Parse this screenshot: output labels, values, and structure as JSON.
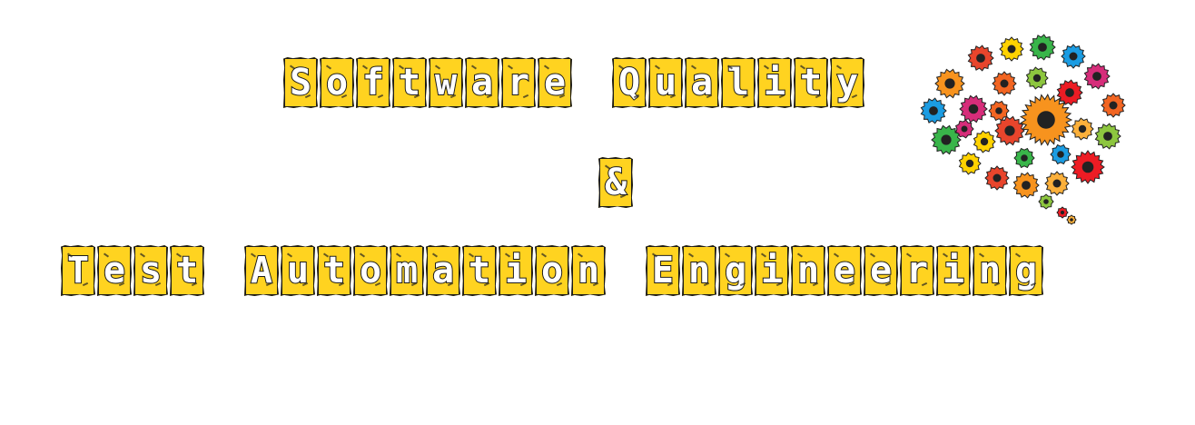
{
  "banner": {
    "line1": "Software Quality",
    "line2": "&",
    "line3": "Test Automation Engineering",
    "icon": "gear-brain-icon",
    "colors": {
      "tile": "#ffd320",
      "outline": "#1a1a1a",
      "letter": "#ffffff"
    }
  }
}
